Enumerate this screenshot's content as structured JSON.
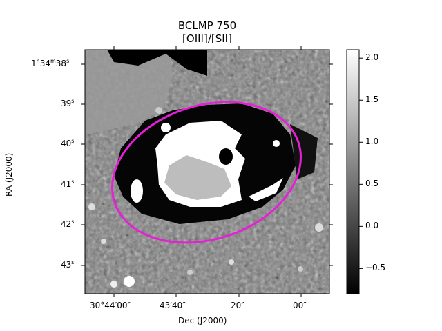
{
  "figure": {
    "title_line1": "BCLMP 750",
    "title_line2": "[OIII]/[SII]",
    "xlabel": "Dec (J2000)",
    "ylabel": "RA (J2000)",
    "colormap": "gray",
    "overlay_ellipse_color": "#e81ed8"
  },
  "y_ticks": [
    {
      "label": "1h34m38s"
    },
    {
      "label": "39s"
    },
    {
      "label": "40s"
    },
    {
      "label": "41s"
    },
    {
      "label": "42s"
    },
    {
      "label": "43s"
    }
  ],
  "x_ticks": [
    {
      "label": "30°44′00″"
    },
    {
      "label": "43′40″"
    },
    {
      "label": "20″"
    },
    {
      "label": "00″"
    }
  ],
  "colorbar": {
    "min": -0.8,
    "max": 2.1,
    "ticks": [
      "2.0",
      "1.5",
      "1.0",
      "0.5",
      "0.0",
      "−0.5"
    ],
    "tick_values": [
      2.0,
      1.5,
      1.0,
      0.5,
      0.0,
      -0.5
    ]
  }
}
